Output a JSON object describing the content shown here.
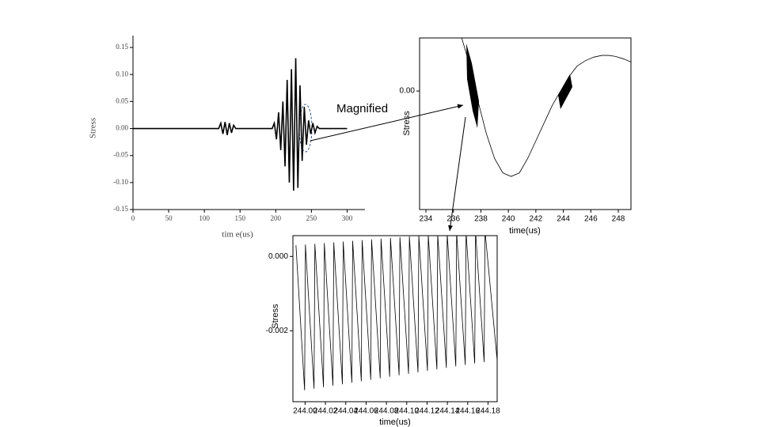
{
  "chart_data": [
    {
      "type": "line",
      "annotation": "Magnified",
      "xlabel": "tim e(us)",
      "ylabel": "Stress",
      "x": [
        0,
        120,
        123,
        126,
        129,
        132,
        135,
        138,
        141,
        144,
        195,
        198,
        201,
        204,
        207,
        210,
        213,
        216,
        219,
        222,
        225,
        228,
        231,
        234,
        237,
        240,
        243,
        246,
        249,
        252,
        255,
        258,
        261,
        300
      ],
      "values": [
        0,
        0,
        0.01,
        -0.01,
        0.012,
        -0.012,
        0.01,
        -0.008,
        0.006,
        0,
        0,
        0.01,
        -0.02,
        0.03,
        -0.04,
        0.05,
        -0.07,
        0.09,
        -0.1,
        0.11,
        -0.115,
        0.13,
        -0.11,
        0.08,
        -0.06,
        0.04,
        -0.03,
        0.015,
        -0.01,
        0.01,
        -0.008,
        0.004,
        0,
        0
      ],
      "color": "#000000",
      "xlim": [
        0,
        325
      ],
      "ylim": [
        -0.15,
        0.172
      ],
      "xticks": [
        0,
        50,
        100,
        150,
        200,
        250,
        300
      ],
      "yticks": [
        {
          "value": 0.15,
          "label": "0.15"
        },
        {
          "value": 0.1,
          "label": "0.10"
        },
        {
          "value": 0.05,
          "label": "0.05"
        },
        {
          "value": 0,
          "label": "0.00"
        },
        {
          "value": -0.05,
          "label": "-0.05"
        },
        {
          "value": -0.1,
          "label": "-0.10"
        },
        {
          "value": -0.15,
          "label": "-0.15"
        }
      ]
    },
    {
      "type": "line",
      "xlabel": "time(us)",
      "ylabel": "Stress",
      "x": [
        236.6,
        237.2,
        237.8,
        238.4,
        239.0,
        239.6,
        240.2,
        240.8,
        241.4,
        242.0,
        242.6,
        243.2,
        243.8,
        244.4,
        245.0,
        245.6,
        246.2,
        246.8,
        247.3,
        247.8,
        248.4,
        249.0
      ],
      "values": [
        0.0015,
        0.0007,
        -0.0003,
        -0.0012,
        -0.0019,
        -0.0023,
        -0.0024,
        -0.0023,
        -0.0019,
        -0.0014,
        -0.0009,
        -0.0004,
        0.0,
        0.0004,
        0.0007,
        0.00085,
        0.00095,
        0.001,
        0.001,
        0.00097,
        0.0009,
        0.0008
      ],
      "color": "#000000",
      "xlim": [
        233.54,
        248.92
      ],
      "ylim": [
        -0.00333,
        0.00149
      ],
      "xticks": [
        234,
        236,
        238,
        240,
        242,
        244,
        246,
        248
      ],
      "yticks": [
        {
          "value": 0,
          "label": "0.00"
        }
      ]
    },
    {
      "type": "line",
      "xlabel": "time(us)",
      "ylabel": "Stress",
      "x": [
        243.991,
        243.9995,
        244.0003,
        244.0088,
        244.0096,
        244.0181,
        244.0189,
        244.0274,
        244.0282,
        244.0367,
        244.0375,
        244.046,
        244.0468,
        244.0553,
        244.0561,
        244.0646,
        244.0654,
        244.0739,
        244.0747,
        244.0832,
        244.084,
        244.0925,
        244.0933,
        244.1018,
        244.1026,
        244.1111,
        244.1119,
        244.1204,
        244.1212,
        244.1297,
        244.1305,
        244.139,
        244.1398,
        244.1483,
        244.1491,
        244.1576,
        244.1584,
        244.1669,
        244.1677,
        244.1762,
        244.177,
        244.189
      ],
      "values": [
        0.0003,
        -0.0036,
        0.00032,
        -0.00356,
        0.00034,
        -0.00352,
        0.00036,
        -0.00348,
        0.00038,
        -0.00344,
        0.0004,
        -0.0034,
        0.00042,
        -0.00336,
        0.00044,
        -0.00332,
        0.00046,
        -0.00328,
        0.00048,
        -0.00324,
        0.0005,
        -0.0032,
        0.00052,
        -0.00316,
        0.00054,
        -0.00312,
        0.00056,
        -0.00308,
        0.00058,
        -0.00304,
        0.0006,
        -0.003,
        0.00062,
        -0.00296,
        0.00064,
        -0.00292,
        0.00066,
        -0.00288,
        0.00068,
        -0.00284,
        0.0007,
        -0.0028
      ],
      "color": "#000000",
      "xlim": [
        243.988,
        244.189
      ],
      "ylim": [
        -0.00391,
        0.00056
      ],
      "xticks": [
        {
          "value": 244.0,
          "label": "244.00"
        },
        {
          "value": 244.02,
          "label": "244.02"
        },
        {
          "value": 244.04,
          "label": "244.04"
        },
        {
          "value": 244.06,
          "label": "244.06"
        },
        {
          "value": 244.08,
          "label": "244.08"
        },
        {
          "value": 244.1,
          "label": "244.10"
        },
        {
          "value": 244.12,
          "label": "244.12"
        },
        {
          "value": 244.14,
          "label": "244.14"
        },
        {
          "value": 244.16,
          "label": "244.16"
        },
        {
          "value": 244.18,
          "label": "244.18"
        }
      ],
      "yticks": [
        {
          "value": 0,
          "label": "0.000"
        },
        {
          "value": -0.002,
          "label": "-0.002"
        }
      ]
    }
  ]
}
